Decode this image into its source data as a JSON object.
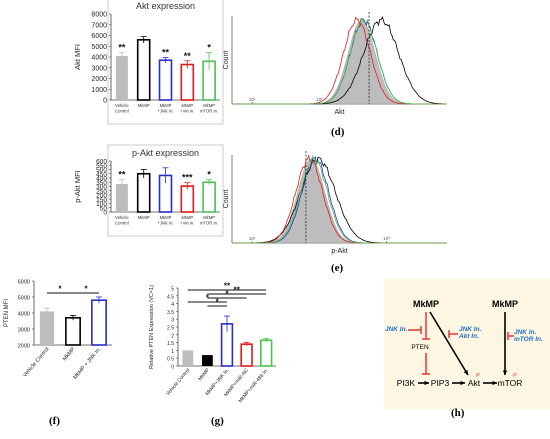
{
  "colors": {
    "grey": "#bdbdbd",
    "black": "#000000",
    "blue": "#2430c8",
    "red": "#e01b1b",
    "green": "#4cc24c",
    "inhib": "#e53935",
    "inhib_text": "#1f6fc5",
    "panel_h_bg": "#fdf6e3"
  },
  "panel_labels": {
    "d": "(d)",
    "e": "(e)",
    "f": "(f)",
    "g": "(g)",
    "h": "(h)"
  },
  "chart_data": [
    {
      "id": "akt-bar",
      "type": "bar",
      "title": "Akt expression",
      "ylabel": "Akt MFI",
      "ylim": [
        0,
        8000
      ],
      "yticks": [
        0,
        1000,
        2000,
        3000,
        4000,
        5000,
        6000,
        7000,
        8000
      ],
      "categories": [
        "Vehicle Control",
        "MkMP",
        "MkMP +JNK In.",
        "MkMP +Akt In.",
        "MkMP mTOR In."
      ],
      "category_lines": [
        [
          "Vehicle",
          "Control"
        ],
        [
          "MkMP",
          ""
        ],
        [
          "MkMP",
          "+JNK In."
        ],
        [
          "MkMP",
          "+Akt In."
        ],
        [
          "MkMP",
          "mTOR In."
        ]
      ],
      "values": [
        4100,
        5600,
        3700,
        3300,
        3600
      ],
      "errors": [
        300,
        300,
        250,
        350,
        800
      ],
      "significance": [
        "**",
        "",
        "**",
        "**",
        "*"
      ]
    },
    {
      "id": "akt-hist",
      "type": "line",
      "xlabel": "Akt",
      "ylabel": "Count",
      "xscale": "log",
      "xticks": [
        "10¹",
        "10²",
        "10³"
      ],
      "peaks_log10": {
        "grey": 2.63,
        "black": 2.92,
        "blue": 2.66,
        "red": 2.56,
        "green": 2.66
      },
      "threshold_log10": 2.74
    },
    {
      "id": "pakt-bar",
      "type": "bar",
      "title": "p-Akt expression",
      "ylabel": "p-Akt MFI",
      "ylim": [
        0,
        600
      ],
      "yticks": [
        0,
        50,
        100,
        150,
        200,
        250,
        300,
        350,
        400,
        450,
        500,
        550,
        600
      ],
      "categories": [
        "Vehicle Control",
        "MkMP",
        "MkMP +JNK In.",
        "MkMP +Akt In.",
        "MkMP mTOR In."
      ],
      "category_lines": [
        [
          "Vehicle",
          "Control"
        ],
        [
          "MkMP",
          ""
        ],
        [
          "MkMP",
          "+JNK In."
        ],
        [
          "MkMP",
          "+Akt In."
        ],
        [
          "MkMP",
          "mTOR In."
        ]
      ],
      "values": [
        330,
        450,
        430,
        305,
        350
      ],
      "errors": [
        50,
        50,
        90,
        40,
        30
      ],
      "significance": [
        "**",
        "",
        "",
        "***",
        "*"
      ]
    },
    {
      "id": "pakt-hist",
      "type": "line",
      "xlabel": "p-Akt",
      "ylabel": "Count",
      "xscale": "log",
      "xticks": [
        "10¹",
        "10²",
        "10³"
      ],
      "peaks_log10": {
        "grey": 1.88,
        "black": 1.98,
        "blue": 1.94,
        "red": 1.85,
        "green": 1.92
      },
      "threshold_log10": 1.8
    },
    {
      "id": "pten-bar",
      "type": "bar",
      "ylabel": "PTEN MFI",
      "ylim": [
        2000,
        6000
      ],
      "yticks": [
        2000,
        3000,
        4000,
        5000,
        6000
      ],
      "categories": [
        "Vehicle Control",
        "MkMP",
        "MkMP + JNK In."
      ],
      "values": [
        4100,
        3700,
        4800
      ],
      "errors": [
        200,
        150,
        200
      ],
      "brackets": [
        {
          "from": 0,
          "to": 1,
          "label": "*"
        },
        {
          "from": 1,
          "to": 2,
          "label": "*"
        }
      ]
    },
    {
      "id": "pten-expr-bar",
      "type": "bar",
      "ylabel": "Relative PTEN Expression (VC=1)",
      "ylim": [
        0,
        5
      ],
      "yticks": [
        0,
        0.5,
        1,
        1.5,
        2,
        2.5,
        3,
        3.5,
        4,
        4.5,
        5
      ],
      "categories": [
        "Vehicle Control",
        "MkMP",
        "MkMP+JNK In.",
        "MkMP+miR-NC",
        "MkMP+miR-486 In."
      ],
      "values": [
        1.0,
        0.7,
        2.7,
        1.4,
        1.65
      ],
      "errors": [
        0,
        0,
        0.5,
        0.12,
        0.12
      ],
      "brackets": [
        {
          "from": 0,
          "to": 4,
          "label": "**"
        },
        {
          "from": 1,
          "to": 4,
          "label": "**"
        },
        {
          "from": 1,
          "to": 3,
          "label": "*"
        },
        {
          "from": 0,
          "to": 2,
          "label": "*"
        },
        {
          "from": 1,
          "to": 2,
          "label": "*"
        }
      ]
    }
  ],
  "pathway": {
    "mkmp1": "MkMP",
    "mkmp2": "MkMP",
    "inhib1": [
      "JNK In."
    ],
    "inhib2": [
      "JNK In.",
      "Akt In."
    ],
    "inhib3": [
      "JNK In.",
      "mTOR In."
    ],
    "pten": "PTEN",
    "pi3k": "PI3K",
    "pip3": "PIP3",
    "akt": "Akt",
    "mtor": "mTOR",
    "p1": "P",
    "p2": "P"
  }
}
